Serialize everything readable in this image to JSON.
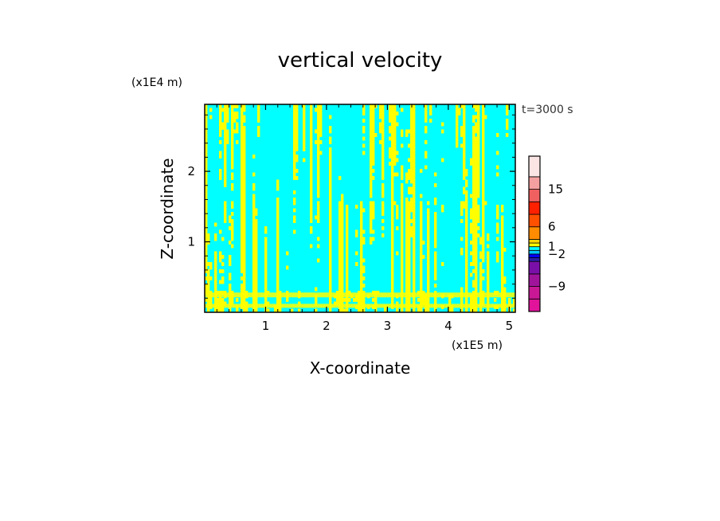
{
  "chart_data": {
    "type": "heatmap",
    "title": "vertical velocity",
    "xlabel": "X-coordinate",
    "ylabel": "Z-coordinate",
    "x_unit": "(x1E5 m)",
    "y_unit": "(x1E4 m)",
    "time_label": "t=3000 s",
    "xlim": [
      0,
      5.1
    ],
    "ylim": [
      0,
      2.95
    ],
    "x_ticks": [
      "1",
      "2",
      "3",
      "4",
      "5"
    ],
    "y_ticks": [
      "1",
      "2"
    ],
    "colorbar": {
      "tick_labels": [
        "15",
        "6",
        "1",
        "-2",
        "-9"
      ],
      "colors": [
        "#e0139a",
        "#c81896",
        "#a0149b",
        "#7a10a8",
        "#2a1fa8",
        "#0000ff",
        "#00c8ff",
        "#00ffff",
        "#ffff00",
        "#ffd700",
        "#ff8c00",
        "#ff5000",
        "#ff2000",
        "#f06060",
        "#f4a0a0",
        "#fbe4e4"
      ],
      "dominant_negative_color": "#00ffff",
      "dominant_positive_color": "#ffff00"
    }
  }
}
